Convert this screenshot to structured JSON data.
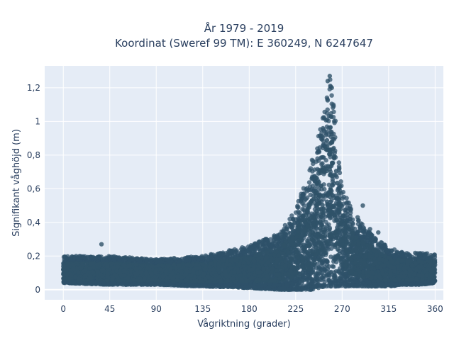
{
  "chart_data": {
    "type": "scatter",
    "title_line1": "År 1979 - 2019",
    "title_line2": "Koordinat (Sweref 99 TM): E 360249, N 6247647",
    "xlabel": "Vågriktning (grader)",
    "ylabel": "Signifikant våghöjd (m)",
    "xlim": [
      -18,
      368
    ],
    "ylim": [
      -0.06,
      1.33
    ],
    "x_ticks": [
      0,
      45,
      90,
      135,
      180,
      225,
      270,
      315,
      360
    ],
    "x_tick_labels": [
      "0",
      "45",
      "90",
      "135",
      "180",
      "225",
      "270",
      "315",
      "360"
    ],
    "y_ticks": [
      0,
      0.2,
      0.4,
      0.6,
      0.8,
      1.0,
      1.2
    ],
    "y_tick_labels": [
      "0",
      "0,2",
      "0,4",
      "0,6",
      "0,8",
      "1",
      "1,2"
    ],
    "grid": true,
    "point_color": "#2f5269",
    "plot_bg": "#e5ecf6",
    "envelope": {
      "x": [
        0,
        45,
        90,
        135,
        180,
        210,
        225,
        240,
        250,
        255,
        258,
        262,
        270,
        285,
        300,
        315,
        330,
        345,
        360
      ],
      "y_max": [
        0.2,
        0.2,
        0.18,
        0.2,
        0.26,
        0.34,
        0.48,
        0.75,
        1.0,
        1.22,
        1.28,
        1.1,
        0.6,
        0.42,
        0.32,
        0.25,
        0.22,
        0.22,
        0.21
      ],
      "y_min": [
        0.04,
        0.03,
        0.03,
        0.02,
        0.01,
        0.0,
        0.0,
        0.0,
        0.01,
        0.02,
        0.02,
        0.02,
        0.02,
        0.02,
        0.02,
        0.02,
        0.03,
        0.03,
        0.04
      ]
    },
    "outliers": [
      {
        "x": 37,
        "y": 0.27
      },
      {
        "x": 258,
        "y": 1.27
      },
      {
        "x": 256,
        "y": 1.24
      },
      {
        "x": 260,
        "y": 1.2
      },
      {
        "x": 290,
        "y": 0.5
      },
      {
        "x": 285,
        "y": 0.43
      },
      {
        "x": 297,
        "y": 0.36
      },
      {
        "x": 305,
        "y": 0.34
      }
    ]
  }
}
